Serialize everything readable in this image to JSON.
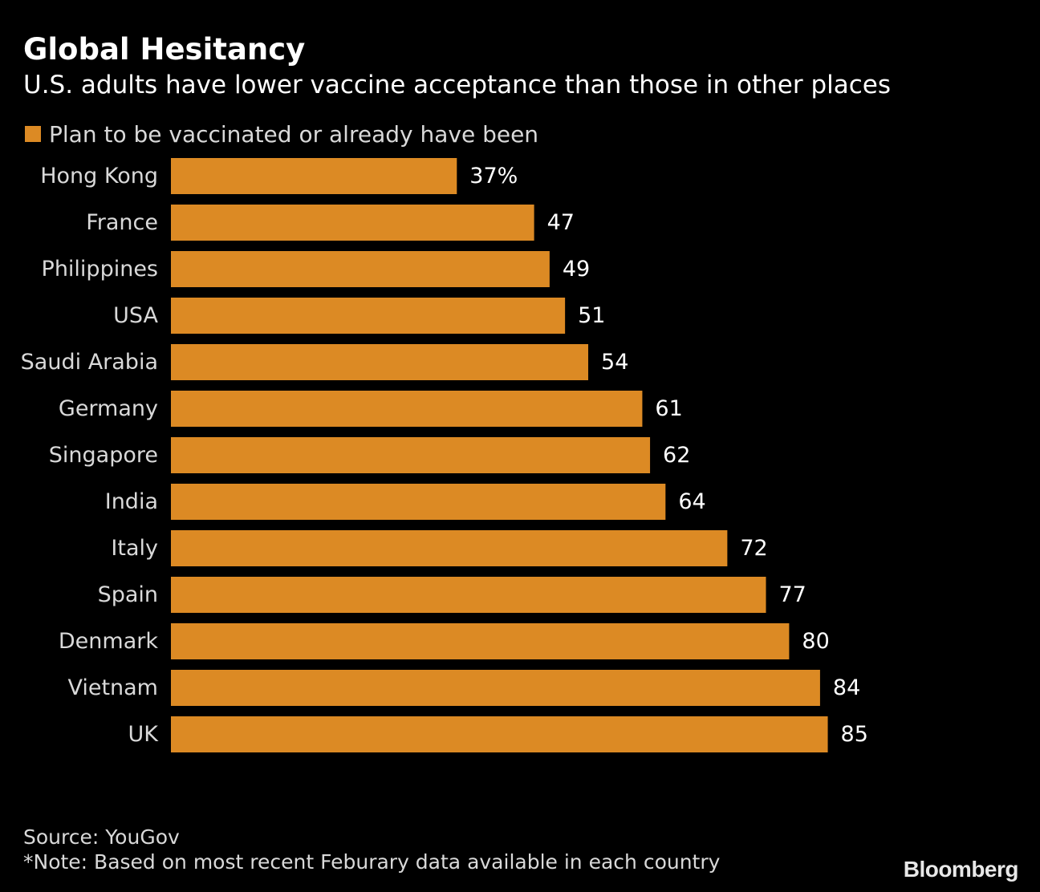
{
  "title": "Global Hesitancy",
  "subtitle": "U.S. adults have lower vaccine acceptance than those in other places",
  "legend": {
    "label": "Plan to be vaccinated or already have been",
    "color": "#dc8a24"
  },
  "chart_data": {
    "type": "bar",
    "orientation": "horizontal",
    "title": "Global Hesitancy",
    "subtitle": "U.S. adults have lower vaccine acceptance than those in other places",
    "categories": [
      "Hong Kong",
      "France",
      "Philippines",
      "USA",
      "Saudi Arabia",
      "Germany",
      "Singapore",
      "India",
      "Italy",
      "Spain",
      "Denmark",
      "Vietnam",
      "UK"
    ],
    "series": [
      {
        "name": "Plan to be vaccinated or already have been",
        "values": [
          37,
          47,
          49,
          51,
          54,
          61,
          62,
          64,
          72,
          77,
          80,
          84,
          85
        ],
        "color": "#dc8a24"
      }
    ],
    "value_labels": [
      "37%",
      "47",
      "49",
      "51",
      "54",
      "61",
      "62",
      "64",
      "72",
      "77",
      "80",
      "84",
      "85"
    ],
    "xlim": [
      0,
      100
    ],
    "xlabel": "",
    "ylabel": "",
    "grid": false,
    "legend_position": "top-left"
  },
  "footer": {
    "source": "Source: YouGov",
    "note": "*Note: Based on most recent Feburary data available in each country"
  },
  "brand": "Bloomberg"
}
